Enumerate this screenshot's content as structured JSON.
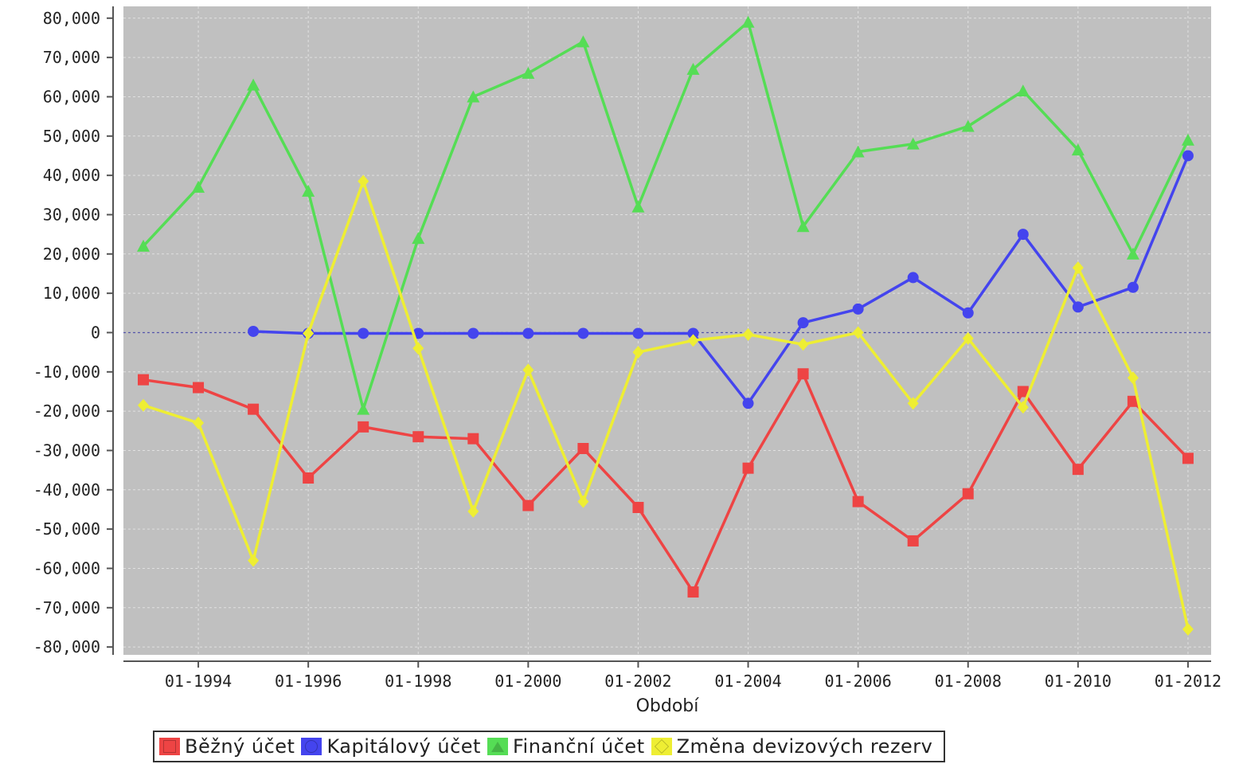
{
  "chart_data": {
    "type": "line",
    "title": "",
    "xlabel": "Období",
    "ylabel": "",
    "x": [
      "01-1993",
      "01-1994",
      "01-1995",
      "01-1996",
      "01-1997",
      "01-1998",
      "01-1999",
      "01-2000",
      "01-2001",
      "01-2002",
      "01-2003",
      "01-2004",
      "01-2005",
      "01-2006",
      "01-2007",
      "01-2008",
      "01-2009",
      "01-2010",
      "01-2011",
      "01-2012"
    ],
    "xticks": [
      "01-1994",
      "01-1996",
      "01-1998",
      "01-2000",
      "01-2002",
      "01-2004",
      "01-2006",
      "01-2008",
      "01-2010",
      "01-2012"
    ],
    "ylim": [
      -82000,
      83000
    ],
    "yticks": [
      80000,
      70000,
      60000,
      50000,
      40000,
      30000,
      20000,
      10000,
      0,
      -10000,
      -20000,
      -30000,
      -40000,
      -50000,
      -60000,
      -70000,
      -80000
    ],
    "ytick_labels": [
      "80,000",
      "70,000",
      "60,000",
      "50,000",
      "40,000",
      "30,000",
      "20,000",
      "10,000",
      "0",
      "-10,000",
      "-20,000",
      "-30,000",
      "-40,000",
      "-50,000",
      "-60,000",
      "-70,000",
      "-80,000"
    ],
    "grid": true,
    "legend_position": "bottom",
    "series": [
      {
        "name": "Běžný účet",
        "color": "#ee4444",
        "marker": "square",
        "values": [
          -12000,
          -14000,
          -19500,
          -37000,
          -24000,
          -26500,
          -27000,
          -44000,
          -29500,
          -44500,
          -66000,
          -34500,
          -10500,
          -43000,
          -53000,
          -41000,
          -15000,
          -34800,
          -17500,
          -32000
        ]
      },
      {
        "name": "Kapitálový účet",
        "color": "#4444ee",
        "marker": "circle",
        "values": [
          null,
          null,
          300,
          -200,
          -200,
          -200,
          -200,
          -200,
          -200,
          -200,
          -200,
          -18000,
          2500,
          6000,
          14000,
          5000,
          25000,
          6500,
          11500,
          45000
        ]
      },
      {
        "name": "Finanční účet",
        "color": "#55dd55",
        "marker": "triangle",
        "values": [
          22000,
          37000,
          63000,
          36000,
          -19500,
          24000,
          60000,
          66000,
          74000,
          32000,
          67000,
          79000,
          27000,
          46000,
          48000,
          52500,
          61500,
          46500,
          20000,
          49000
        ]
      },
      {
        "name": "Změna devizových rezerv",
        "color": "#eeee33",
        "marker": "diamond",
        "values": [
          -18500,
          -23000,
          -58000,
          -200,
          38500,
          -4000,
          -45500,
          -9500,
          -43000,
          -5000,
          -2000,
          -500,
          -3000,
          0,
          -18000,
          -1500,
          -19000,
          16500,
          -11500,
          -75500
        ]
      }
    ]
  },
  "legend": {
    "items": [
      {
        "label": "Běžný účet",
        "color": "#ee4444",
        "icon": "red-square-icon"
      },
      {
        "label": "Kapitálový účet",
        "color": "#4444ee",
        "icon": "blue-circle-icon"
      },
      {
        "label": "Finanční účet",
        "color": "#55dd55",
        "icon": "green-triangle-icon"
      },
      {
        "label": "Změna devizových rezerv",
        "color": "#eeee33",
        "icon": "yellow-diamond-icon"
      }
    ]
  }
}
